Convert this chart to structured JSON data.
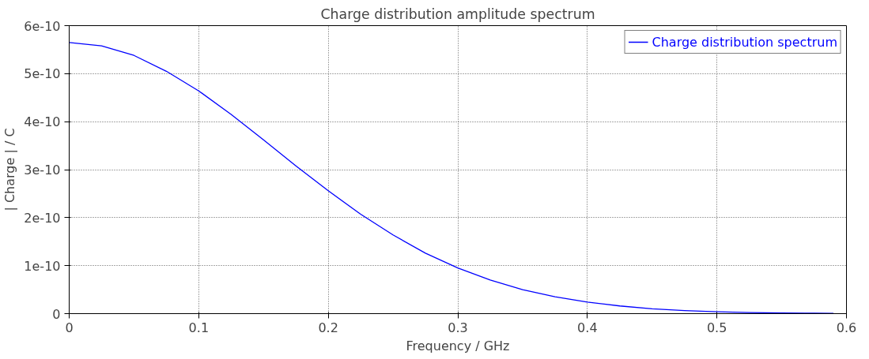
{
  "chart_data": {
    "type": "line",
    "title": "Charge distribution amplitude spectrum",
    "xlabel": "Frequency / GHz",
    "ylabel": "| Charge | / C",
    "x": [
      0,
      0.025,
      0.05,
      0.075,
      0.1,
      0.125,
      0.15,
      0.175,
      0.2,
      0.225,
      0.25,
      0.275,
      0.3,
      0.325,
      0.35,
      0.375,
      0.4,
      0.425,
      0.45,
      0.475,
      0.5,
      0.525,
      0.55,
      0.575,
      0.59
    ],
    "series": [
      {
        "name": "Charge distribution spectrum",
        "color": "#0000ff",
        "values": [
          5.65e-10,
          5.58e-10,
          5.38e-10,
          5.05e-10,
          4.64e-10,
          4.15e-10,
          3.62e-10,
          3.08e-10,
          2.56e-10,
          2.07e-10,
          1.64e-10,
          1.26e-10,
          9.5e-11,
          7e-11,
          5e-11,
          3.5e-11,
          2.4e-11,
          1.6e-11,
          1e-11,
          6.5e-12,
          4e-12,
          2.4e-12,
          1.4e-12,
          8e-13,
          6e-13
        ]
      }
    ],
    "xlim": [
      0,
      0.6
    ],
    "xticks": [
      0,
      0.1,
      0.2,
      0.3,
      0.4,
      0.5,
      0.6
    ],
    "ylim": [
      0,
      6e-10
    ],
    "yticks": [
      0,
      {
        "value": 1e-10,
        "label": "1e-10"
      },
      {
        "value": 2e-10,
        "label": "2e-10"
      },
      {
        "value": 3e-10,
        "label": "3e-10"
      },
      {
        "value": 4e-10,
        "label": "4e-10"
      },
      {
        "value": 5e-10,
        "label": "5e-10"
      },
      {
        "value": 6e-10,
        "label": "6e-10"
      }
    ],
    "grid": true,
    "legend": "top right",
    "line_style": "solid"
  }
}
